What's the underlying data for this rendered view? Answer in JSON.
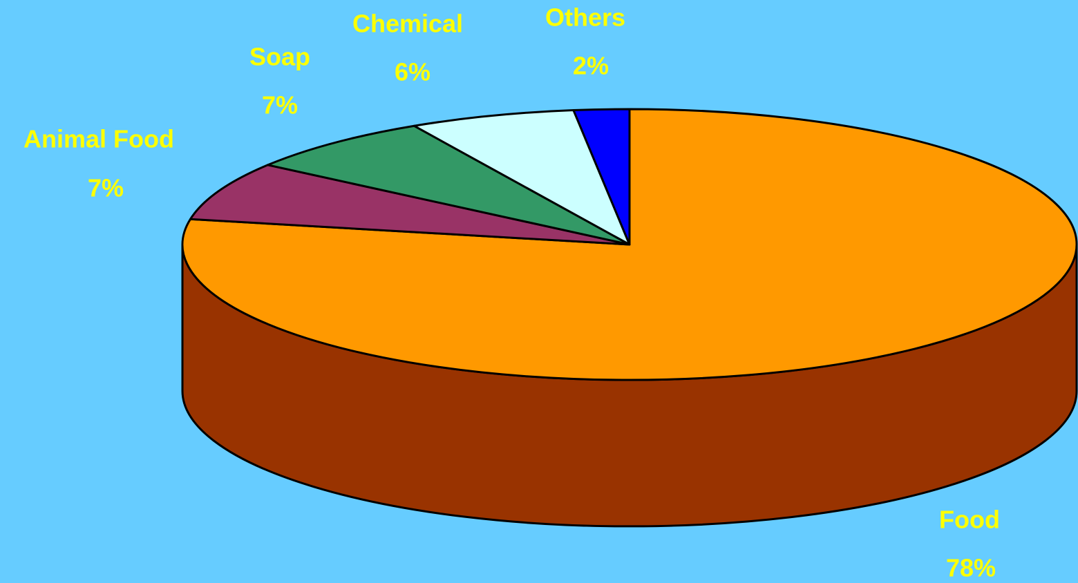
{
  "chart_data": {
    "type": "pie",
    "categories": [
      "Food",
      "Animal Food",
      "Soap",
      "Chemical",
      "Others"
    ],
    "values": [
      78,
      7,
      7,
      6,
      2
    ],
    "value_labels": [
      "78%",
      "7%",
      "7%",
      "6%",
      "2%"
    ],
    "colors": [
      "#ff9900",
      "#993366",
      "#339966",
      "#ccffff",
      "#0000ff"
    ],
    "side_colors": [
      "#993300",
      "#661f44",
      "#206644",
      "#88aaaa",
      "#0000aa"
    ]
  }
}
